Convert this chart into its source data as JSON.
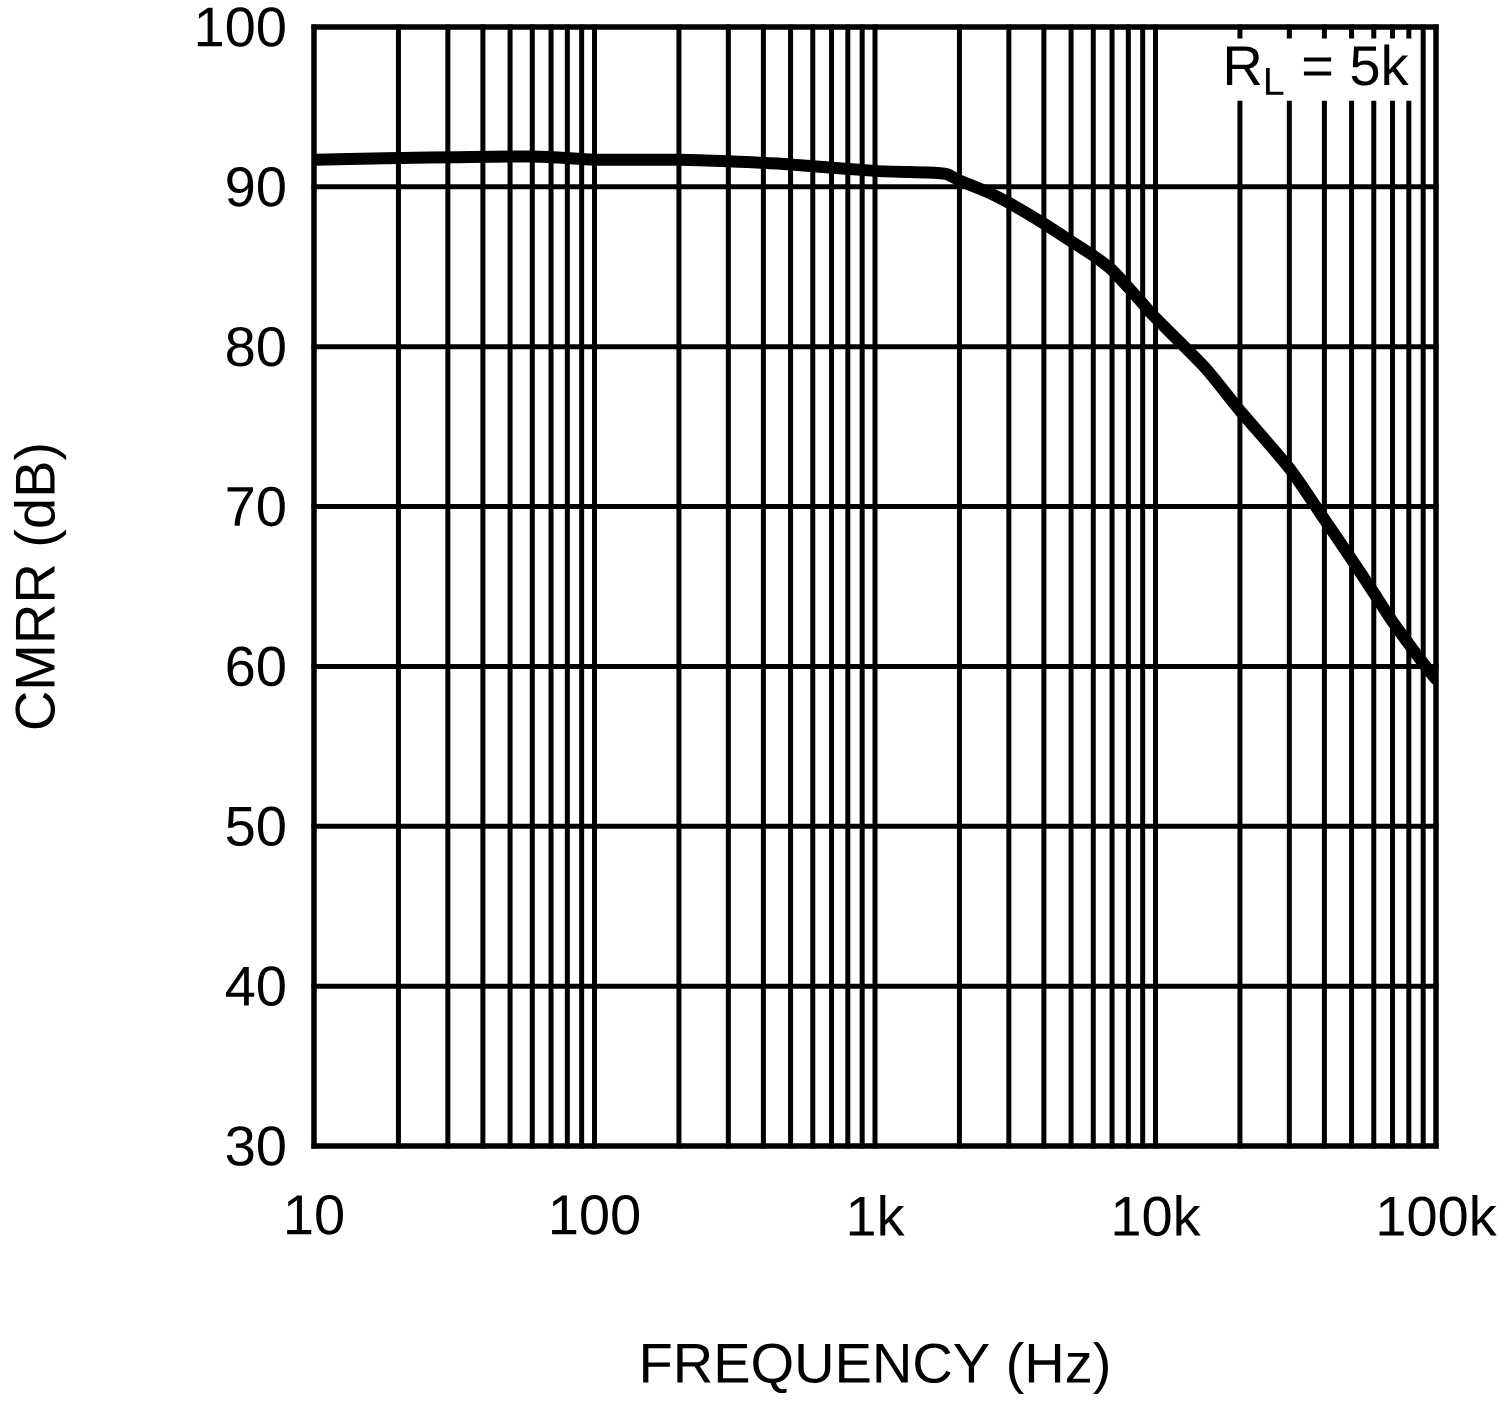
{
  "chart_data": {
    "type": "line",
    "xlabel": "FREQUENCY (Hz)",
    "ylabel": "CMRR (dB)",
    "annotations": [
      "R$_{L}$ = 5k"
    ],
    "x": [
      10,
      20,
      60,
      100,
      200,
      300,
      500,
      1000,
      1500,
      1800,
      2000,
      2500,
      3000,
      4000,
      5000,
      6000,
      7000,
      8000,
      9000,
      10000,
      15000,
      20000,
      30000,
      40000,
      50000,
      60000,
      70000,
      80000,
      90000,
      100000
    ],
    "series": [
      {
        "color": "#000000",
        "values": [
          91.7,
          91.8,
          91.9,
          91.7,
          91.7,
          91.6,
          91.4,
          91.0,
          90.9,
          90.8,
          90.4,
          89.7,
          89.0,
          87.7,
          86.6,
          85.7,
          84.8,
          83.7,
          82.7,
          81.8,
          78.7,
          76.0,
          72.4,
          69.2,
          66.7,
          64.6,
          62.8,
          61.4,
          60.2,
          59.2
        ]
      }
    ],
    "xlim": [
      10,
      100000
    ],
    "ylim": [
      30,
      100
    ],
    "xticks": [
      10,
      100,
      {
        "value": 1000,
        "label": "1k"
      },
      {
        "value": 10000,
        "label": "10k"
      },
      {
        "value": 100000,
        "label": "100k"
      }
    ],
    "yticks": [
      30,
      40,
      50,
      60,
      70,
      80,
      90,
      100
    ],
    "log": "x",
    "grid": true
  }
}
